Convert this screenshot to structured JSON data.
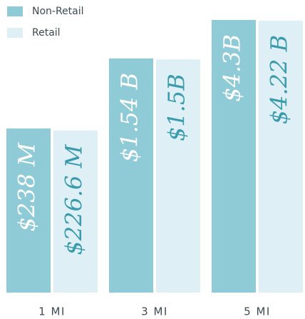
{
  "chart_data": {
    "type": "bar",
    "categories": [
      "1 MI",
      "3 MI",
      "5 MI"
    ],
    "series": [
      {
        "name": "Non-Retail",
        "color": "#8fcbd7",
        "label_color": "#ffffff",
        "values": [
          238000000,
          1540000000,
          4300000000
        ],
        "value_labels": [
          "$238 M",
          "$1.54 B",
          "$4.3B"
        ]
      },
      {
        "name": "Retail",
        "color": "#def0f5",
        "label_color": "#3a9bad",
        "values": [
          226600000,
          1500000000,
          4220000000
        ],
        "value_labels": [
          "$226.6 M",
          "$1.5B",
          "$4.22 B"
        ]
      }
    ],
    "log_scale": true,
    "ylim": [
      3000000,
      5000000000
    ],
    "legend": "top-left"
  }
}
